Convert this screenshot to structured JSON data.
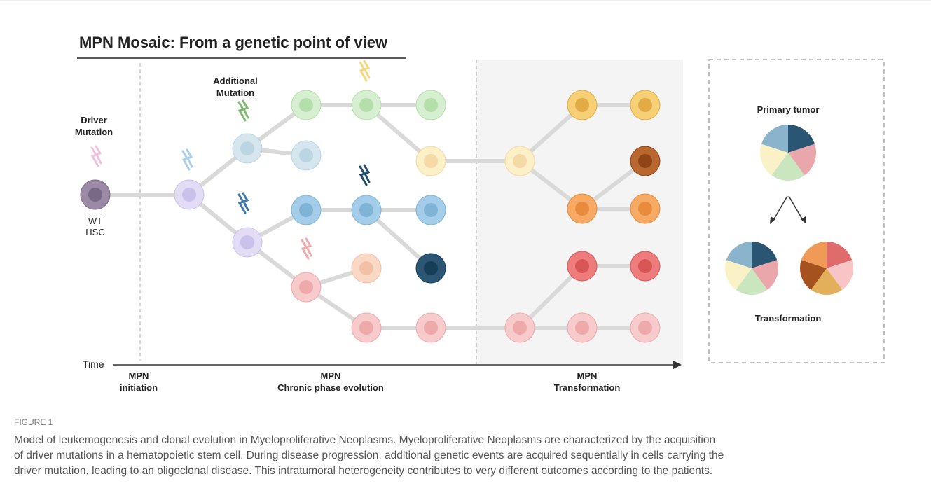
{
  "title": "MPN Mosaic: From a genetic point of view",
  "labels": {
    "driver_mutation": [
      "Driver",
      "Mutation"
    ],
    "additional_mutation": [
      "Additional",
      "Mutation"
    ],
    "wt_hsc": [
      "WT",
      "HSC"
    ],
    "time": "Time"
  },
  "phases": [
    [
      "MPN",
      "initiation"
    ],
    [
      "MPN",
      "Chronic phase evolution"
    ],
    [
      "MPN",
      "Transformation"
    ]
  ],
  "legend": {
    "primary": "Primary tumor",
    "transformation": "Transformation"
  },
  "figure": {
    "label": "FIGURE 1",
    "caption": [
      "Model of leukemogenesis and clonal evolution in Myeloproliferative Neoplasms. Myeloproliferative Neoplasms are characterized by the acquisition",
      "of driver mutations in a hematopoietic stem cell. During disease progression, additional genetic events are acquired sequentially in cells carrying the",
      "driver mutation, leading to an oligoclonal disease. This intratumoral heterogeneity contributes to very different outcomes according to the patients."
    ]
  }
}
